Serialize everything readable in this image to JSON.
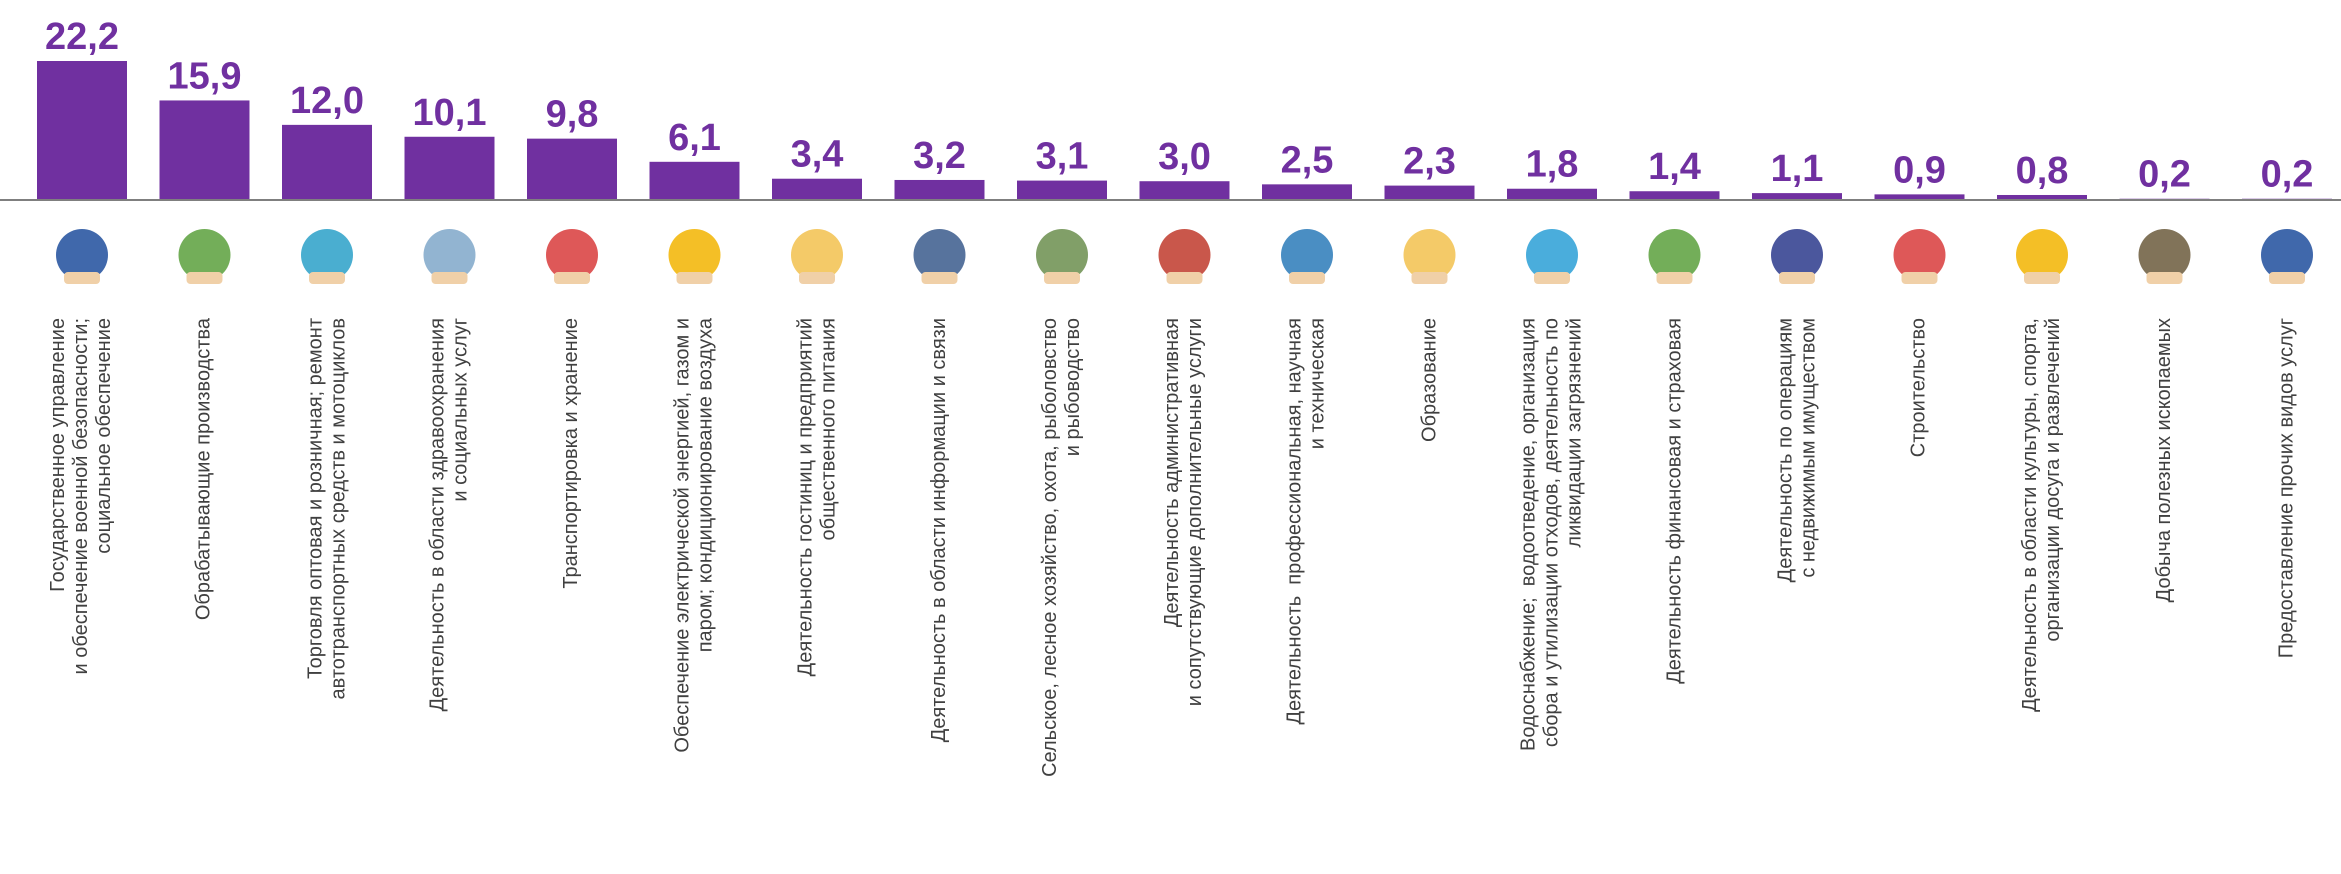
{
  "chart_data": {
    "type": "bar",
    "color": "#7030a0",
    "categories": [
      "Государственное управление\nи обеспечение военной безопасности;\nсоциальное обеспечение",
      "Обрабатывающие производства",
      "Торговля оптовая и розничная; ремонт\nавтотранспортных средств и мотоциклов",
      "Деятельность в области здравоохранения\nи социальных услуг",
      "Транспортировка и хранение",
      "Обеспечение электрической энергией, газом и\nпаром; кондиционирование воздуха",
      "Деятельность гостиниц и предприятий\nобщественного питания",
      "Деятельность в области информации и связи",
      "Сельское, лесное хозяйство, охота, рыболовство\nи рыбоводство",
      "Деятельность административная\nи сопутствующие дополнительные услуги",
      "Деятельность  профессиональная, научная\nи техническая",
      "Образование",
      "Водоснабжение;  водоотведение, организация\nсбора и утилизации отходов, деятельность по\nликвидации загрязнений",
      "Деятельность финансовая и страховая",
      "Деятельность по операциям\nс недвижимым имуществом",
      "Строительство",
      "Деятельность в области культуры, спорта,\nорганизации досуга и развлечений",
      "Добыча полезных ископаемых",
      "Предоставление прочих видов услуг"
    ],
    "values": [
      22.2,
      15.9,
      12.0,
      10.1,
      9.8,
      6.1,
      3.4,
      3.2,
      3.1,
      3.0,
      2.5,
      2.3,
      1.8,
      1.4,
      1.1,
      0.9,
      0.8,
      0.2,
      0.2
    ],
    "value_labels": [
      "22,2",
      "15,9",
      "12,0",
      "10,1",
      "9,8",
      "6,1",
      "3,4",
      "3,2",
      "3,1",
      "3,0",
      "2,5",
      "2,3",
      "1,8",
      "1,4",
      "1,1",
      "0,9",
      "0,8",
      "0,2",
      "0,2"
    ]
  }
}
